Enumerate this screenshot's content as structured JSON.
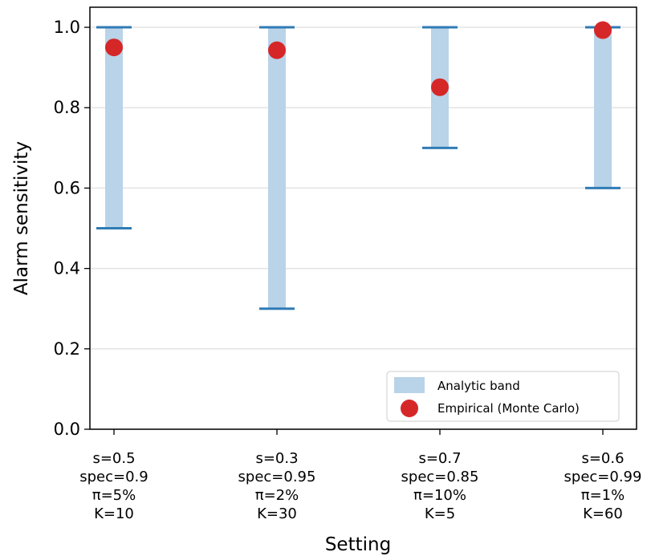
{
  "chart_data": {
    "type": "scatter",
    "xlabel": "Setting",
    "ylabel": "Alarm sensitivity",
    "ylim": [
      0,
      1.05
    ],
    "yticks": [
      "0.0",
      "0.2",
      "0.4",
      "0.6",
      "0.8",
      "1.0"
    ],
    "grid": true,
    "legend_position": "lower-right",
    "categories": [
      [
        "s=0.5",
        "spec=0.9",
        "π=5%",
        "K=10"
      ],
      [
        "s=0.3",
        "spec=0.95",
        "π=2%",
        "K=30"
      ],
      [
        "s=0.7",
        "spec=0.85",
        "π=10%",
        "K=5"
      ],
      [
        "s=0.6",
        "spec=0.99",
        "π=1%",
        "K=60"
      ]
    ],
    "series": [
      {
        "name": "Analytic band",
        "kind": "band",
        "color": "#b9d3e8",
        "cap_color": "#2f7bb5",
        "low": [
          0.5,
          0.3,
          0.7,
          0.6
        ],
        "high": [
          1.0,
          1.0,
          1.0,
          1.0
        ]
      },
      {
        "name": "Empirical (Monte Carlo)",
        "kind": "points",
        "color": "#d62728",
        "values": [
          0.95,
          0.943,
          0.851,
          0.993
        ]
      }
    ]
  }
}
